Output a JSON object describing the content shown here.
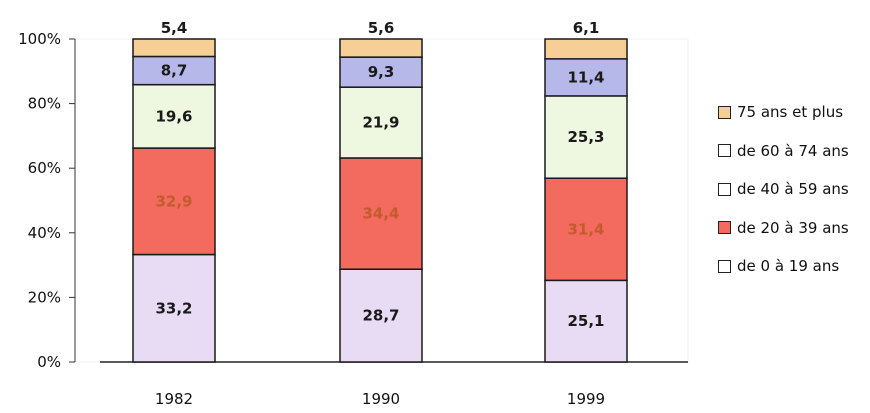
{
  "chart_data": {
    "type": "bar",
    "stacked": true,
    "categories": [
      "1982",
      "1990",
      "1999"
    ],
    "ylim": [
      0,
      100
    ],
    "yticks": [
      "0%",
      "20%",
      "40%",
      "60%",
      "80%",
      "100%"
    ],
    "series": [
      {
        "name": "de 0 à 19 ans",
        "values": [
          33.2,
          28.7,
          25.1
        ],
        "labels": [
          "33,2",
          "28,7",
          "25,1"
        ],
        "color": "#e8dcf4",
        "label_color": "#1a1a1a"
      },
      {
        "name": "de 20 à 39 ans",
        "values": [
          32.9,
          34.4,
          31.4
        ],
        "labels": [
          "32,9",
          "34,4",
          "31,4"
        ],
        "color": "#f26b5e",
        "label_color": "#c45a2e"
      },
      {
        "name": "de 40 à 59 ans",
        "values": [
          19.6,
          21.9,
          25.3
        ],
        "labels": [
          "19,6",
          "21,9",
          "25,3"
        ],
        "color": "#eef7df",
        "label_color": "#1a1a1a"
      },
      {
        "name": "de 60 à 74 ans",
        "values": [
          8.7,
          9.3,
          11.4
        ],
        "labels": [
          "8,7",
          "9,3",
          "11,4"
        ],
        "color": "#b7b8ea",
        "label_color": "#1a1a1a"
      },
      {
        "name": "75 ans et plus",
        "values": [
          5.4,
          5.6,
          6.1
        ],
        "labels": [
          "5,4",
          "5,6",
          "6,1"
        ],
        "color": "#f6cf96",
        "label_color": "#1a1a1a"
      }
    ],
    "legend_order": [
      "75 ans et plus",
      "de 60 à 74 ans",
      "de 40 à 59 ans",
      "de 20 à 39 ans",
      "de 0 à 19 ans"
    ],
    "legend_swatch_colors": [
      "#f6cf96",
      "#ffffff",
      "#ffffff",
      "#f26b5e",
      "#ffffff"
    ],
    "legend_position": "right",
    "grid": false
  }
}
